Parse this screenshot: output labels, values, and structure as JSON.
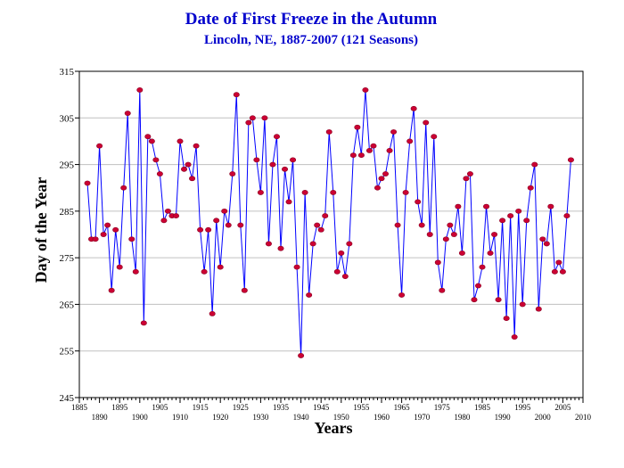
{
  "chart_data": {
    "type": "line",
    "title": "Date of First Freeze in the Autumn",
    "subtitle": "Lincoln, NE, 1887-2007 (121 Seasons)",
    "xlabel": "Years",
    "ylabel": "Day of the Year",
    "xlim": [
      1885,
      2010
    ],
    "ylim": [
      245,
      315
    ],
    "y_ticks": [
      "245",
      "255",
      "265",
      "275",
      "285",
      "295",
      "305",
      "315"
    ],
    "x_ticks_top_row": [
      "1885",
      "1895",
      "1905",
      "1915",
      "1925",
      "1935",
      "1945",
      "1955",
      "1965",
      "1975",
      "1985",
      "1995",
      "2005"
    ],
    "x_ticks_bottom_row": [
      "1890",
      "1900",
      "1910",
      "1920",
      "1930",
      "1940",
      "1950",
      "1960",
      "1970",
      "1980",
      "1990",
      "2000",
      "2010"
    ],
    "grid": "horizontal",
    "colors": {
      "line": "#0000ff",
      "marker": "#cc0033",
      "title": "#0000cc",
      "grid": "#c0c0c0"
    },
    "series": [
      {
        "x": [
          1887,
          1888,
          1889,
          1890,
          1891,
          1892,
          1893,
          1894,
          1895,
          1896,
          1897,
          1898,
          1899,
          1900,
          1901,
          1902,
          1903,
          1904,
          1905,
          1906,
          1907,
          1908,
          1909,
          1910,
          1911,
          1912,
          1913,
          1914,
          1915,
          1916,
          1917,
          1918,
          1919,
          1920,
          1921,
          1922,
          1923,
          1924,
          1925,
          1926,
          1927,
          1928,
          1929,
          1930,
          1931,
          1932,
          1933,
          1934,
          1935,
          1936,
          1937,
          1938,
          1939,
          1940,
          1941,
          1942,
          1943,
          1944,
          1945,
          1946,
          1947,
          1948,
          1949,
          1950,
          1951,
          1952,
          1953,
          1954,
          1955,
          1956,
          1957,
          1958,
          1959,
          1960,
          1961,
          1962,
          1963,
          1964,
          1965,
          1966,
          1967,
          1968,
          1969,
          1970,
          1971,
          1972,
          1973,
          1974,
          1975,
          1976,
          1977,
          1978,
          1979,
          1980,
          1981,
          1982,
          1983,
          1984,
          1985,
          1986,
          1987,
          1988,
          1989,
          1990,
          1991,
          1992,
          1993,
          1994,
          1995,
          1996,
          1997,
          1998,
          1999,
          2000,
          2001,
          2002,
          2003,
          2004,
          2005,
          2006,
          2007
        ],
        "values": [
          291,
          279,
          279,
          299,
          280,
          282,
          268,
          281,
          273,
          290,
          306,
          279,
          272,
          311,
          261,
          301,
          300,
          296,
          293,
          283,
          285,
          284,
          284,
          300,
          294,
          295,
          292,
          299,
          281,
          272,
          281,
          263,
          283,
          273,
          285,
          282,
          293,
          310,
          282,
          268,
          304,
          305,
          296,
          289,
          305,
          278,
          295,
          301,
          277,
          294,
          287,
          296,
          273,
          254,
          289,
          267,
          278,
          282,
          281,
          284,
          302,
          289,
          272,
          276,
          271,
          278,
          297,
          303,
          297,
          311,
          298,
          299,
          290,
          292,
          293,
          298,
          302,
          282,
          267,
          289,
          300,
          307,
          287,
          282,
          304,
          280,
          301,
          274,
          268,
          279,
          282,
          280,
          286,
          276,
          292,
          293,
          266,
          269,
          273,
          286,
          276,
          280,
          266,
          283,
          262,
          284,
          258,
          285,
          265,
          283,
          290,
          295,
          264,
          279,
          278,
          286,
          272,
          274,
          272,
          284,
          296
        ]
      }
    ]
  }
}
